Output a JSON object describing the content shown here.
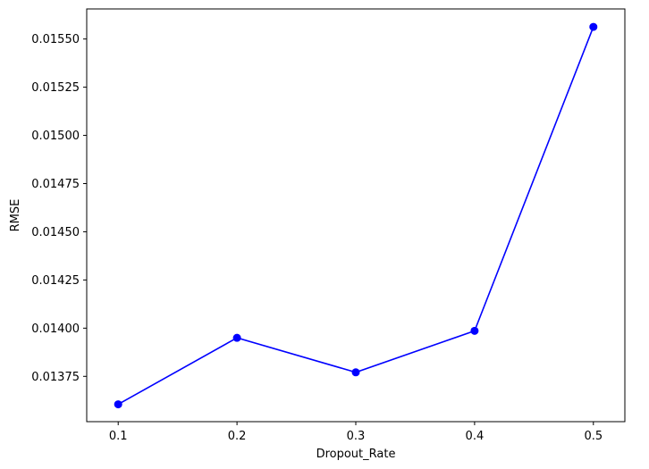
{
  "chart_data": {
    "type": "line",
    "title": "",
    "xlabel": "Dropout_Rate",
    "ylabel": "RMSE",
    "x": [
      0.1,
      0.2,
      0.3,
      0.4,
      0.5
    ],
    "series": [
      {
        "name": "",
        "values": [
          0.013605,
          0.01395,
          0.013771,
          0.013986,
          0.015563
        ],
        "color": "#0000ff",
        "marker": "circle"
      }
    ],
    "xlim": [
      0.0735,
      0.5265
    ],
    "ylim": [
      0.013515,
      0.015656
    ],
    "xticks": [
      0.1,
      0.2,
      0.3,
      0.4,
      0.5
    ],
    "xtick_labels": [
      "0.1",
      "0.2",
      "0.3",
      "0.4",
      "0.5"
    ],
    "yticks": [
      0.01375,
      0.014,
      0.01425,
      0.0145,
      0.01475,
      0.015,
      0.01525,
      0.0155
    ],
    "ytick_labels": [
      "0.01375",
      "0.01400",
      "0.01425",
      "0.01450",
      "0.01475",
      "0.01500",
      "0.01525",
      "0.01550"
    ],
    "grid": false,
    "legend": false
  }
}
